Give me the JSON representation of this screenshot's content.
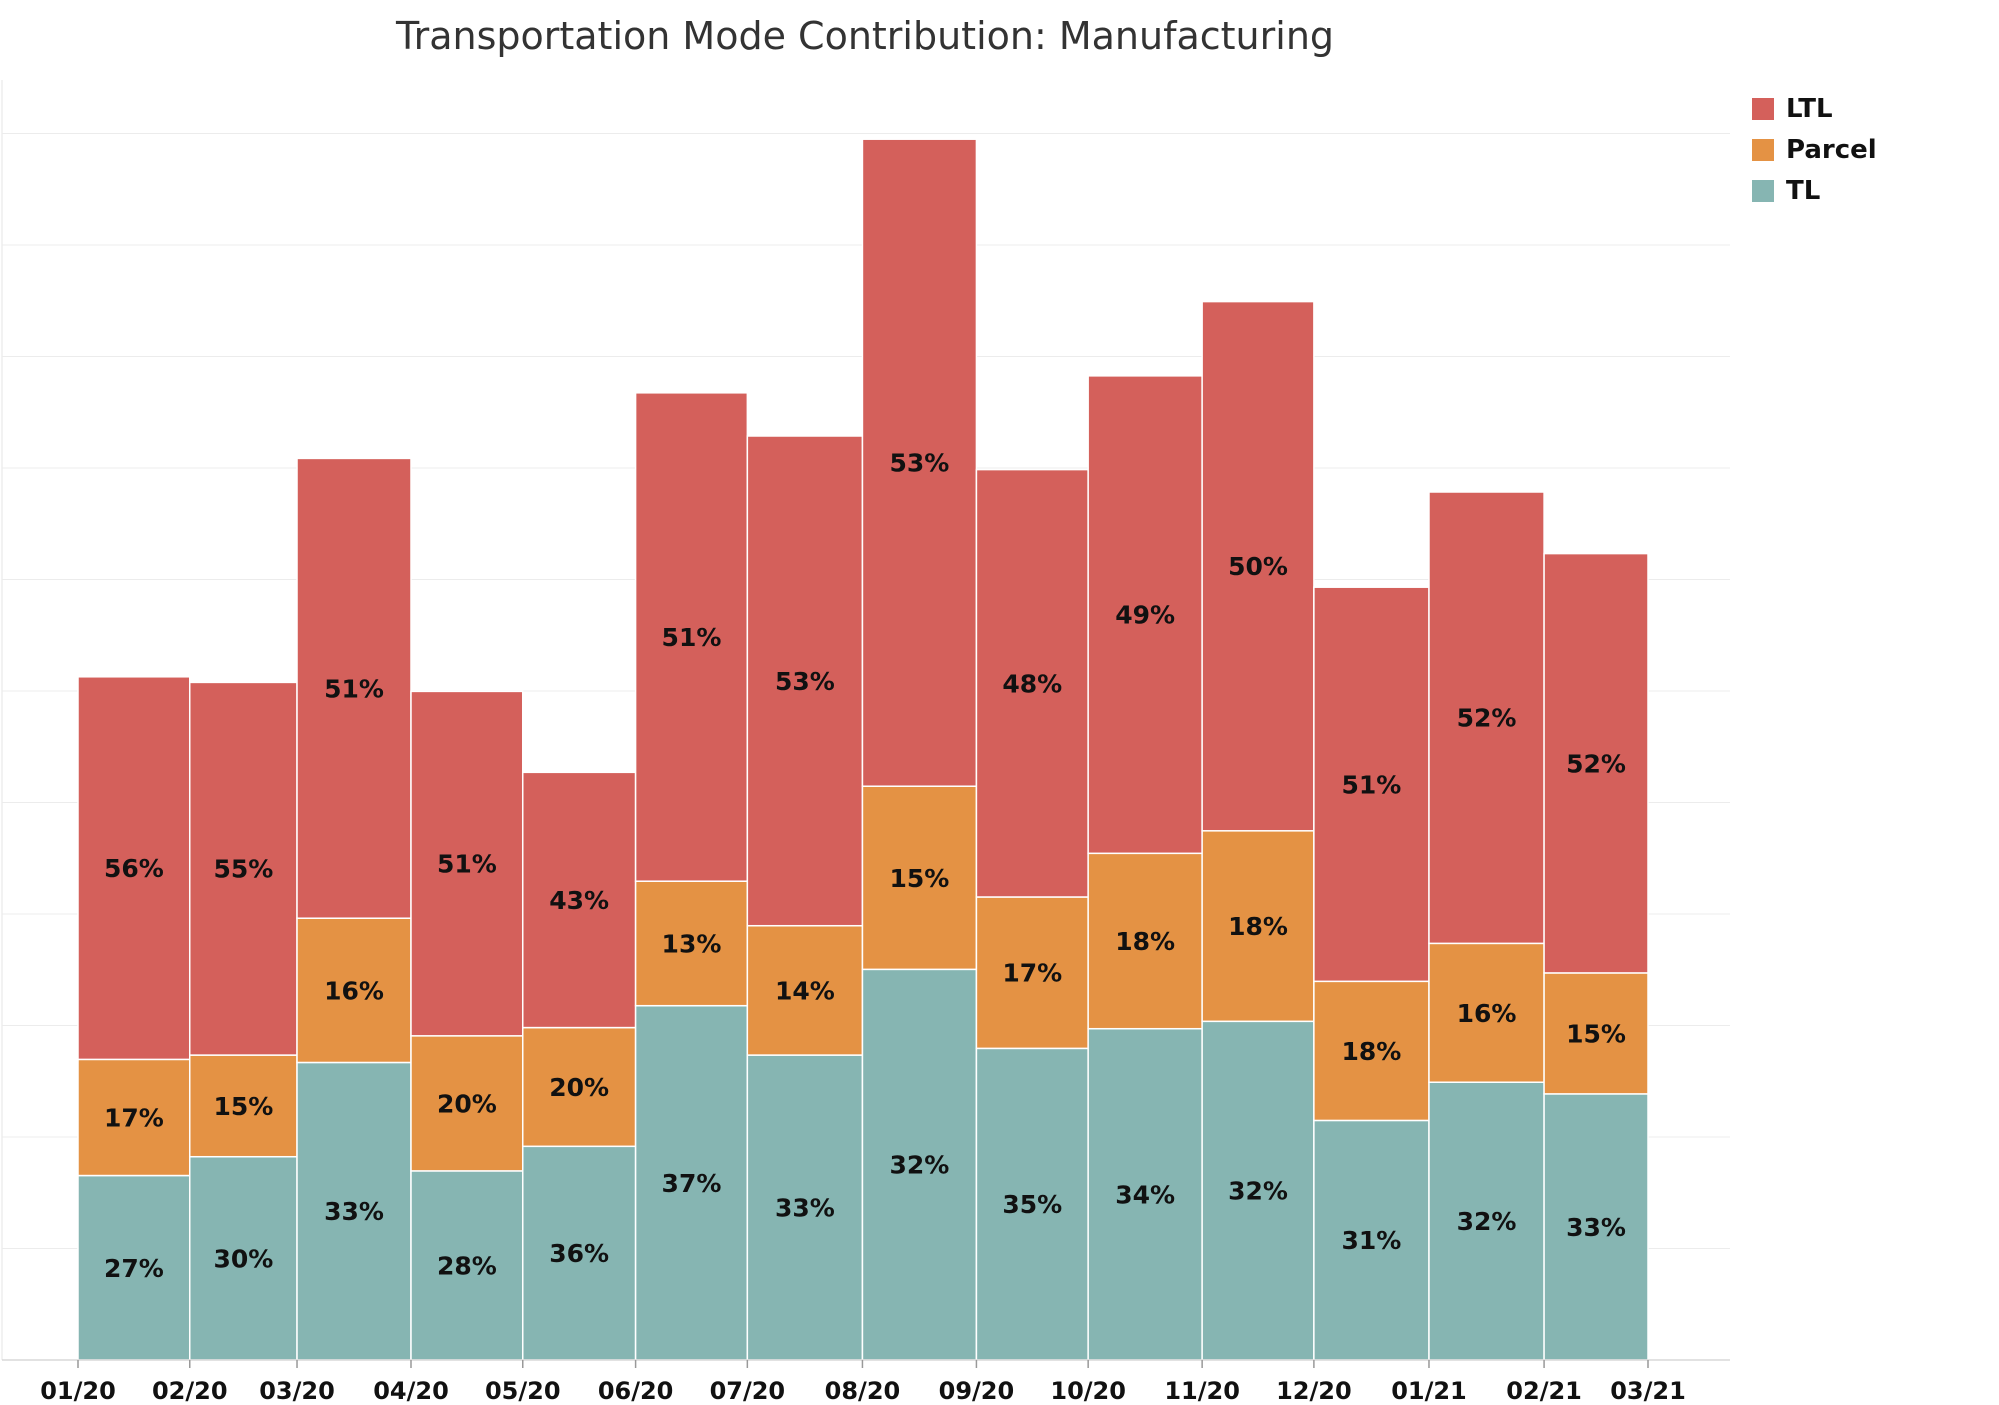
{
  "chart_data": {
    "type": "bar",
    "title": "Transportation Mode Contribution: Manufacturing",
    "xlabel": "",
    "ylabel": "",
    "grid": true,
    "legend_position": "top-right",
    "x_ticks": [
      "01/20",
      "02/20",
      "03/20",
      "04/20",
      "05/20",
      "06/20",
      "07/20",
      "08/20",
      "09/20",
      "10/20",
      "11/20",
      "12/20",
      "01/21",
      "02/21",
      "03/21"
    ],
    "bar_width_weights": [
      1.0,
      0.96,
      1.02,
      1.0,
      1.01,
      1.0,
      1.03,
      1.02,
      1.0,
      1.02,
      1.0,
      1.03,
      1.03,
      0.93
    ],
    "totals": [
      610,
      605,
      805,
      603,
      530,
      855,
      825,
      1090,
      795,
      870,
      945,
      690,
      775,
      720
    ],
    "series": [
      {
        "name": "TL",
        "color": "#86b5b2",
        "labels": [
          "27%",
          "30%",
          "33%",
          "28%",
          "36%",
          "37%",
          "33%",
          "32%",
          "35%",
          "34%",
          "32%",
          "31%",
          "32%",
          "33%"
        ]
      },
      {
        "name": "Parcel",
        "color": "#e49244",
        "labels": [
          "17%",
          "15%",
          "16%",
          "20%",
          "20%",
          "13%",
          "14%",
          "15%",
          "17%",
          "18%",
          "18%",
          "18%",
          "16%",
          "15%"
        ]
      },
      {
        "name": "LTL",
        "color": "#d4605b",
        "labels": [
          "56%",
          "55%",
          "51%",
          "51%",
          "43%",
          "51%",
          "53%",
          "53%",
          "48%",
          "49%",
          "50%",
          "51%",
          "52%",
          "52%"
        ]
      }
    ],
    "legend": [
      "LTL",
      "Parcel",
      "TL"
    ]
  }
}
